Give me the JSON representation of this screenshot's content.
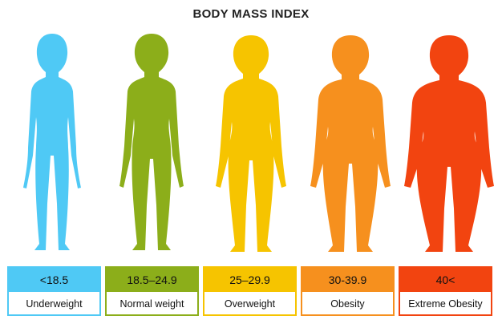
{
  "title": "BODY MASS INDEX",
  "categories": [
    {
      "range": "<18.5",
      "label": "Underweight",
      "color": "#4fc9f5",
      "icon": "thin-woman-silhouette-icon"
    },
    {
      "range": "18.5–24.9",
      "label": "Normal weight",
      "color": "#8cae1a",
      "icon": "normal-woman-silhouette-icon"
    },
    {
      "range": "25–29.9",
      "label": "Overweight",
      "color": "#f6c400",
      "icon": "overweight-woman-silhouette-icon"
    },
    {
      "range": "30-39.9",
      "label": "Obesity",
      "color": "#f6901e",
      "icon": "obese-woman-silhouette-icon"
    },
    {
      "range": "40<",
      "label": "Extreme Obesity",
      "color": "#f24410",
      "icon": "extremely-obese-woman-silhouette-icon"
    }
  ]
}
